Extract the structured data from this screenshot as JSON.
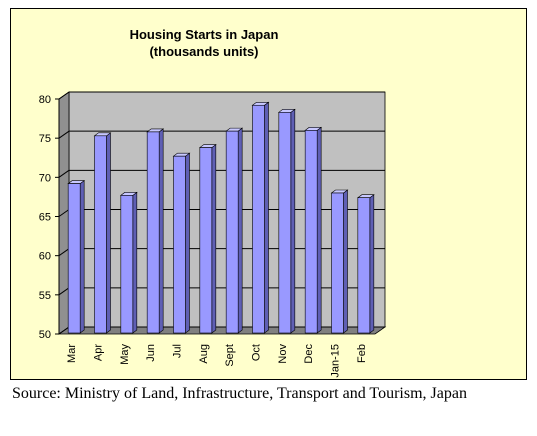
{
  "chart_data": {
    "type": "bar",
    "title": "Housing Starts in Japan",
    "subtitle": "(thousands units)",
    "categories": [
      "Mar",
      "Apr",
      "May",
      "Jun",
      "Jul",
      "Aug",
      "Sept",
      "Oct",
      "Nov",
      "Dec",
      "Jan-15",
      "Feb"
    ],
    "values": [
      69.2,
      75.3,
      67.7,
      75.8,
      72.7,
      73.8,
      75.9,
      79.2,
      78.3,
      76.0,
      68.0,
      67.4
    ],
    "ylim": [
      50,
      80
    ],
    "yticks": [
      50,
      55,
      60,
      65,
      70,
      75,
      80
    ],
    "grid": true,
    "legend": "none",
    "xlabel": "",
    "ylabel": "",
    "colors": {
      "bar_front": "#9999ff",
      "bar_side": "#5f5fb4",
      "bar_top": "#c8c8ff",
      "wall": "#c0c0c0",
      "side_wall": "#909090",
      "floor": "#808080",
      "gridline": "#000000",
      "background": "#ffffcc"
    }
  },
  "source_note": "Source: Ministry of Land, Infrastructure, Transport and Tourism, Japan"
}
